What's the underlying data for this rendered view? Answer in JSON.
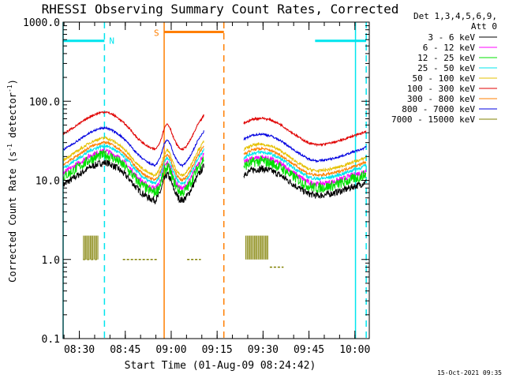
{
  "chart_data": {
    "type": "line",
    "title": "RHESSI Observing Summary Count Rates, Corrected",
    "xlabel": "Start Time (01-Aug-09 08:24:42)",
    "ylabel_main": "Corrected Count Rate (s",
    "ylabel_sup1": "-1",
    "ylabel_mid": " detector",
    "ylabel_sup2": "-1",
    "ylabel_end": ")",
    "y_scale": "log",
    "ylim": [
      0.1,
      1000
    ],
    "y_ticks": [
      {
        "value": 0.1,
        "label": "0.1"
      },
      {
        "value": 1,
        "label": "1.0"
      },
      {
        "value": 10,
        "label": "10.0"
      },
      {
        "value": 100,
        "label": "100.0"
      },
      {
        "value": 1000,
        "label": "1000.0"
      }
    ],
    "x_unit": "minutes after 08:24:42",
    "xlim": [
      0,
      100
    ],
    "x_ticks": [
      {
        "value": 5.3,
        "label": "08:30"
      },
      {
        "value": 20.3,
        "label": "08:45"
      },
      {
        "value": 35.3,
        "label": "09:00"
      },
      {
        "value": 50.3,
        "label": "09:15"
      },
      {
        "value": 65.3,
        "label": "09:30"
      },
      {
        "value": 80.3,
        "label": "09:45"
      },
      {
        "value": 95.3,
        "label": "10:00"
      }
    ],
    "legend_header": [
      "Det 1,3,4,5,6,9,",
      "Att 0"
    ],
    "legend_position": "right",
    "series": [
      {
        "name": "3 - 6 keV",
        "color": "#000000",
        "scale": 0.4,
        "noise": 0.1
      },
      {
        "name": "6 - 12 keV",
        "color": "#ff00ff",
        "scale": 0.56,
        "noise": 0.08
      },
      {
        "name": "12 - 25 keV",
        "color": "#00e000",
        "scale": 0.5,
        "noise": 0.15
      },
      {
        "name": "25 - 50 keV",
        "color": "#00e5ee",
        "scale": 0.65,
        "noise": 0.05
      },
      {
        "name": "50 - 100 keV",
        "color": "#e5c000",
        "scale": 0.82,
        "noise": 0.04
      },
      {
        "name": "100 - 300 keV",
        "color": "#e00000",
        "scale": 1.75,
        "noise": 0.03
      },
      {
        "name": "300 - 800 keV",
        "color": "#ff7f00",
        "scale": 0.72,
        "noise": 0.04
      },
      {
        "name": "800 - 7000 keV",
        "color": "#0000e0",
        "scale": 1.1,
        "noise": 0.03
      },
      {
        "name": "7000 - 15000 keV",
        "color": "#808000",
        "scale": 0.0,
        "noise": 0.0
      }
    ],
    "data_segments": [
      {
        "x": [
          0,
          3,
          6,
          9,
          12,
          14,
          16,
          18,
          20,
          22,
          24,
          26,
          28,
          30,
          31,
          32,
          33,
          34,
          35,
          36,
          37,
          38,
          39,
          40,
          41,
          42,
          43,
          44,
          45,
          46
        ],
        "base": [
          22,
          26,
          31,
          37,
          41,
          42,
          39,
          35,
          30,
          25,
          20,
          17,
          15,
          14,
          15.5,
          19,
          26,
          30,
          26,
          20,
          16.5,
          14.5,
          14,
          15,
          17,
          20,
          24,
          29,
          33,
          38
        ]
      },
      {
        "x": [
          59,
          62,
          65,
          68,
          71,
          74,
          77,
          80,
          83,
          86,
          89,
          92,
          95,
          97,
          99
        ],
        "base": [
          30,
          34,
          35,
          33,
          29,
          24,
          20,
          17,
          16,
          16.5,
          17.5,
          19,
          21,
          22,
          24
        ]
      }
    ],
    "saa_flags": [
      {
        "x": [
          6.5,
          11
        ],
        "y": 1.0
      },
      {
        "x": [
          19.5,
          31
        ],
        "y": 1.0
      },
      {
        "x": [
          40.5,
          45
        ],
        "y": 1.0
      },
      {
        "x": [
          67.5,
          72
        ],
        "y": 0.8
      }
    ],
    "high_bursts": [
      {
        "x": [
          6.5,
          11.5
        ],
        "y_low": 1.0,
        "y_high": 2.0
      },
      {
        "x": [
          59.5,
          67
        ],
        "y_low": 1.0,
        "y_high": 2.0
      }
    ],
    "night_markers": {
      "label": "N",
      "color": "#00e5ee",
      "solid": [
        0,
        95.5
      ],
      "dashed": [
        13.5,
        99
      ],
      "bars": [
        {
          "x": [
            0,
            13.5
          ],
          "y": 580
        },
        {
          "x": [
            82.3,
            99
          ],
          "y": 580
        }
      ]
    },
    "saa_markers": {
      "label": "S",
      "color": "#ff7f00",
      "solid": [
        33
      ],
      "dashed": [
        52.5
      ],
      "bars": [
        {
          "x": [
            33,
            52.5
          ],
          "y": 750
        }
      ]
    }
  },
  "footer": {
    "timestamp": "15-Oct-2021 09:35"
  }
}
